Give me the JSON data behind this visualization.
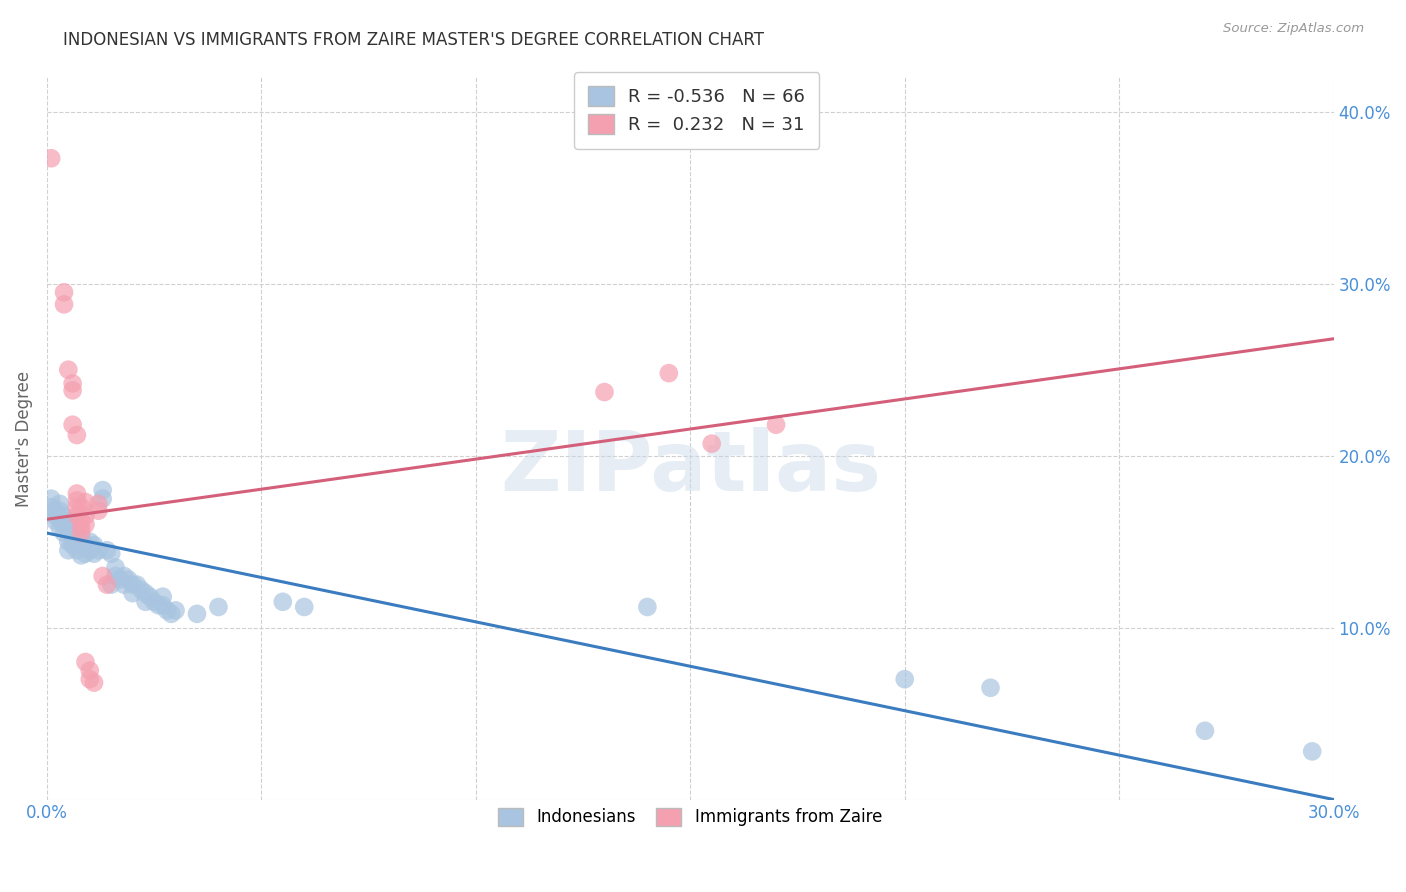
{
  "title": "INDONESIAN VS IMMIGRANTS FROM ZAIRE MASTER'S DEGREE CORRELATION CHART",
  "source": "Source: ZipAtlas.com",
  "ylabel": "Master's Degree",
  "xlim": [
    0.0,
    0.3
  ],
  "ylim": [
    0.0,
    0.42
  ],
  "xticks": [
    0.0,
    0.05,
    0.1,
    0.15,
    0.2,
    0.25,
    0.3
  ],
  "yticks": [
    0.0,
    0.1,
    0.2,
    0.3,
    0.4
  ],
  "legend_r_blue": "-0.536",
  "legend_n_blue": "66",
  "legend_r_pink": "0.232",
  "legend_n_pink": "31",
  "blue_color": "#a8c4e0",
  "pink_color": "#f4a0b0",
  "blue_line_color": "#3a7cbf",
  "pink_line_color": "#d45f7a",
  "background_color": "#ffffff",
  "grid_color": "#d0d0d0",
  "blue_scatter": [
    [
      0.001,
      0.175
    ],
    [
      0.001,
      0.17
    ],
    [
      0.002,
      0.168
    ],
    [
      0.002,
      0.165
    ],
    [
      0.002,
      0.162
    ],
    [
      0.003,
      0.172
    ],
    [
      0.003,
      0.168
    ],
    [
      0.003,
      0.163
    ],
    [
      0.003,
      0.158
    ],
    [
      0.004,
      0.165
    ],
    [
      0.004,
      0.16
    ],
    [
      0.004,
      0.155
    ],
    [
      0.005,
      0.162
    ],
    [
      0.005,
      0.157
    ],
    [
      0.005,
      0.15
    ],
    [
      0.005,
      0.145
    ],
    [
      0.006,
      0.158
    ],
    [
      0.006,
      0.152
    ],
    [
      0.006,
      0.148
    ],
    [
      0.007,
      0.155
    ],
    [
      0.007,
      0.15
    ],
    [
      0.007,
      0.145
    ],
    [
      0.008,
      0.152
    ],
    [
      0.008,
      0.148
    ],
    [
      0.008,
      0.142
    ],
    [
      0.009,
      0.148
    ],
    [
      0.009,
      0.143
    ],
    [
      0.01,
      0.15
    ],
    [
      0.01,
      0.145
    ],
    [
      0.011,
      0.148
    ],
    [
      0.011,
      0.143
    ],
    [
      0.012,
      0.145
    ],
    [
      0.013,
      0.18
    ],
    [
      0.013,
      0.175
    ],
    [
      0.014,
      0.145
    ],
    [
      0.015,
      0.143
    ],
    [
      0.015,
      0.125
    ],
    [
      0.016,
      0.135
    ],
    [
      0.016,
      0.13
    ],
    [
      0.017,
      0.128
    ],
    [
      0.018,
      0.13
    ],
    [
      0.018,
      0.125
    ],
    [
      0.019,
      0.128
    ],
    [
      0.02,
      0.125
    ],
    [
      0.02,
      0.12
    ],
    [
      0.021,
      0.125
    ],
    [
      0.022,
      0.122
    ],
    [
      0.023,
      0.12
    ],
    [
      0.023,
      0.115
    ],
    [
      0.024,
      0.118
    ],
    [
      0.025,
      0.115
    ],
    [
      0.026,
      0.113
    ],
    [
      0.027,
      0.118
    ],
    [
      0.027,
      0.113
    ],
    [
      0.028,
      0.11
    ],
    [
      0.029,
      0.108
    ],
    [
      0.03,
      0.11
    ],
    [
      0.035,
      0.108
    ],
    [
      0.04,
      0.112
    ],
    [
      0.055,
      0.115
    ],
    [
      0.06,
      0.112
    ],
    [
      0.14,
      0.112
    ],
    [
      0.2,
      0.07
    ],
    [
      0.22,
      0.065
    ],
    [
      0.27,
      0.04
    ],
    [
      0.295,
      0.028
    ]
  ],
  "pink_scatter": [
    [
      0.001,
      0.373
    ],
    [
      0.004,
      0.295
    ],
    [
      0.004,
      0.288
    ],
    [
      0.005,
      0.25
    ],
    [
      0.006,
      0.242
    ],
    [
      0.006,
      0.238
    ],
    [
      0.006,
      0.218
    ],
    [
      0.007,
      0.212
    ],
    [
      0.007,
      0.178
    ],
    [
      0.007,
      0.174
    ],
    [
      0.007,
      0.17
    ],
    [
      0.007,
      0.165
    ],
    [
      0.008,
      0.162
    ],
    [
      0.008,
      0.158
    ],
    [
      0.008,
      0.155
    ],
    [
      0.008,
      0.17
    ],
    [
      0.009,
      0.165
    ],
    [
      0.009,
      0.16
    ],
    [
      0.009,
      0.173
    ],
    [
      0.009,
      0.08
    ],
    [
      0.01,
      0.075
    ],
    [
      0.01,
      0.07
    ],
    [
      0.011,
      0.068
    ],
    [
      0.012,
      0.172
    ],
    [
      0.012,
      0.168
    ],
    [
      0.013,
      0.13
    ],
    [
      0.014,
      0.125
    ],
    [
      0.13,
      0.237
    ],
    [
      0.145,
      0.248
    ],
    [
      0.17,
      0.218
    ],
    [
      0.155,
      0.207
    ]
  ],
  "blue_line_x": [
    0.0,
    0.3
  ],
  "blue_line_y": [
    0.155,
    0.0
  ],
  "pink_line_x": [
    0.0,
    0.3
  ],
  "pink_line_y": [
    0.163,
    0.268
  ]
}
